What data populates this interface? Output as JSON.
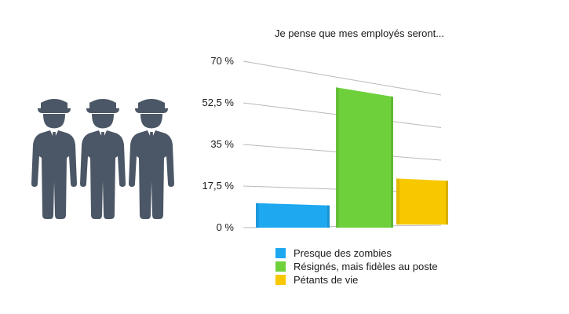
{
  "chart_data": {
    "type": "bar",
    "title": "Je pense que mes employés seront...",
    "xlabel": "",
    "ylabel": "",
    "ylim": [
      0,
      70
    ],
    "grid": true,
    "legend_position": "bottom",
    "y_ticks": [
      {
        "value": 0,
        "label": "0 %"
      },
      {
        "value": 17.5,
        "label": "17,5 %"
      },
      {
        "value": 35,
        "label": "35 %"
      },
      {
        "value": 52.5,
        "label": "52,5 %"
      },
      {
        "value": 70,
        "label": "70 %"
      }
    ],
    "series": [
      {
        "name": "Presque des zombies",
        "value": 10,
        "color": "#1EA8F0"
      },
      {
        "name": "Résignés, mais fidèles au poste",
        "value": 62,
        "color": "#6ED13C"
      },
      {
        "name": "Pétants de vie",
        "value": 22,
        "color": "#F7C800"
      }
    ]
  },
  "illustration": {
    "icon": "security-guards-icon",
    "color": "#4B5766",
    "count": 3
  }
}
